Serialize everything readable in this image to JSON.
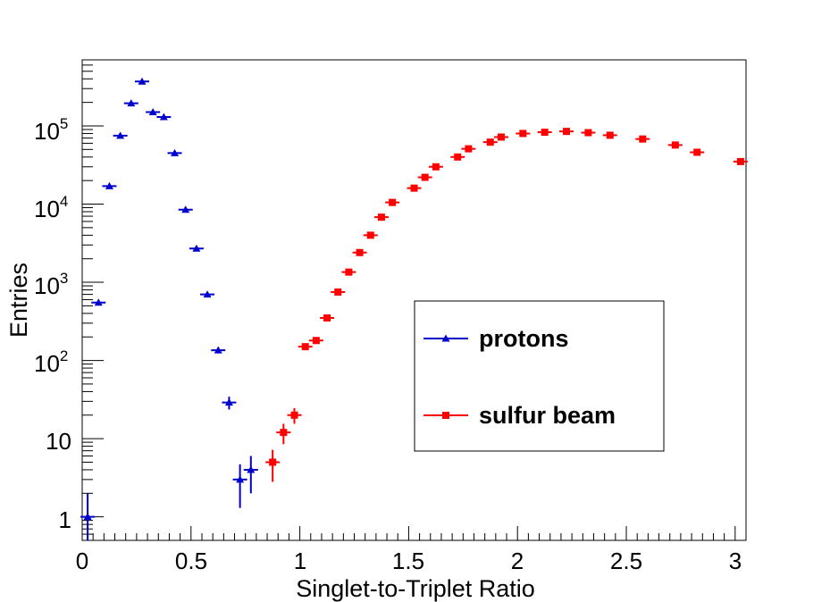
{
  "chart_data": {
    "type": "scatter",
    "title": "",
    "xlabel": "Singlet-to-Triplet Ratio",
    "ylabel": "Entries",
    "xlim": [
      0,
      3.05
    ],
    "ylim": [
      0.5,
      700000
    ],
    "yscale": "log",
    "x_ticks": [
      0,
      0.5,
      1,
      1.5,
      2,
      2.5,
      3
    ],
    "x_tick_labels": [
      "0",
      "0.5",
      "1",
      "1.5",
      "2",
      "2.5",
      "3"
    ],
    "y_ticks": [
      1,
      10,
      100,
      1000,
      10000,
      100000
    ],
    "y_tick_labels": {
      "one": "1",
      "ten": "10",
      "e2": {
        "base": "10",
        "exp": "2"
      },
      "e3": {
        "base": "10",
        "exp": "3"
      },
      "e4": {
        "base": "10",
        "exp": "4"
      },
      "e5": {
        "base": "10",
        "exp": "5"
      }
    },
    "legend_position": "center-right",
    "series": [
      {
        "name": "protons",
        "color": "#0000cc",
        "marker": "triangle",
        "x": [
          0.025,
          0.075,
          0.125,
          0.175,
          0.225,
          0.275,
          0.325,
          0.375,
          0.425,
          0.475,
          0.525,
          0.575,
          0.625,
          0.675,
          0.725,
          0.775
        ],
        "y": [
          1,
          550,
          17000,
          75000,
          195000,
          370000,
          150000,
          130000,
          45000,
          8500,
          2700,
          700,
          135,
          29,
          3,
          4
        ],
        "y_err": [
          1,
          23,
          130,
          270,
          440,
          610,
          390,
          360,
          210,
          92,
          52,
          26,
          12,
          5.4,
          1.7,
          2
        ]
      },
      {
        "name": "sulfur beam",
        "color": "#ff0000",
        "marker": "square",
        "x": [
          0.875,
          0.925,
          0.975,
          1.025,
          1.075,
          1.125,
          1.175,
          1.225,
          1.275,
          1.325,
          1.375,
          1.425,
          1.525,
          1.575,
          1.625,
          1.725,
          1.775,
          1.875,
          1.925,
          2.025,
          2.125,
          2.225,
          2.325,
          2.425,
          2.575,
          2.725,
          2.825,
          3.025
        ],
        "y": [
          5,
          12,
          20,
          150,
          180,
          350,
          750,
          1350,
          2400,
          4000,
          6800,
          10500,
          16000,
          22000,
          30000,
          40000,
          51000,
          62000,
          72000,
          80000,
          83000,
          85000,
          82000,
          76000,
          68000,
          57000,
          46000,
          35000
        ],
        "y_err": [
          2.2,
          3.5,
          4.5,
          12,
          13,
          19,
          27,
          37,
          49,
          63,
          82,
          102,
          126,
          148,
          173,
          200,
          226,
          249,
          268,
          283,
          288,
          292,
          286,
          276,
          261,
          239,
          214,
          187
        ]
      }
    ]
  }
}
